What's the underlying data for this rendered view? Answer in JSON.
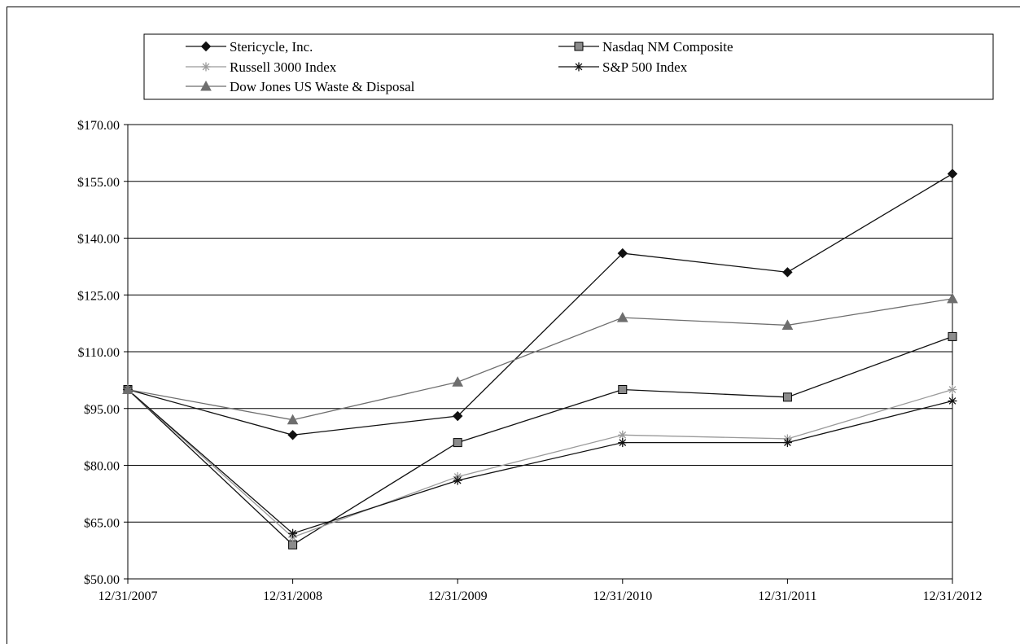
{
  "chart_data": {
    "type": "line",
    "title": "",
    "xlabel": "",
    "ylabel": "",
    "categories": [
      "12/31/2007",
      "12/31/2008",
      "12/31/2009",
      "12/31/2010",
      "12/31/2011",
      "12/31/2012"
    ],
    "ylim": [
      50,
      170
    ],
    "yticks": [
      50,
      65,
      80,
      95,
      110,
      125,
      140,
      155,
      170
    ],
    "ytick_labels": [
      "$50.00",
      "$65.00",
      "$80.00",
      "$95.00",
      "$110.00",
      "$125.00",
      "$140.00",
      "$155.00",
      "$170.00"
    ],
    "grid": true,
    "legend_position": "top",
    "series": [
      {
        "name": "Stericycle, Inc.",
        "color": "#111111",
        "line_color": "#111111",
        "marker": "diamond",
        "values": [
          100,
          88,
          93,
          136,
          131,
          157
        ]
      },
      {
        "name": "Nasdaq NM Composite",
        "color": "#8c8c8c",
        "line_color": "#111111",
        "marker": "square",
        "values": [
          100,
          59,
          86,
          100,
          98,
          114
        ]
      },
      {
        "name": "Russell 3000 Index",
        "color": "#9a9a9a",
        "line_color": "#9a9a9a",
        "marker": "asterisk",
        "values": [
          100,
          61,
          77,
          88,
          87,
          100
        ]
      },
      {
        "name": "S&P 500 Index",
        "color": "#111111",
        "line_color": "#111111",
        "marker": "asterisk",
        "values": [
          100,
          62,
          76,
          86,
          86,
          97
        ]
      },
      {
        "name": "Dow Jones US Waste & Disposal",
        "color": "#6e6e6e",
        "line_color": "#6e6e6e",
        "marker": "triangle",
        "values": [
          100,
          92,
          102,
          119,
          117,
          124
        ]
      }
    ]
  }
}
